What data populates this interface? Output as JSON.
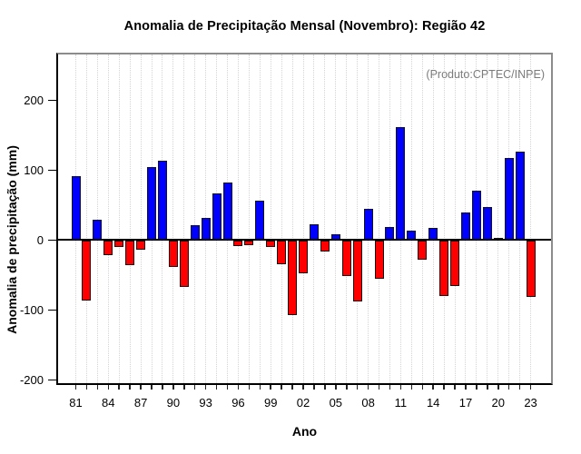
{
  "title": "Anomalia de Precipitação Mensal (Novembro): Região 42",
  "annotation": "(Produto:CPTEC/INPE)",
  "xlabel": "Ano",
  "ylabel": "Anomalia de precipitação (mm)",
  "colors": {
    "positive_bar": "#0000ff",
    "negative_bar": "#ff0000",
    "bar_border": "#141414",
    "annotation_text": "#7b7b7b",
    "box_border": "#8c8c8c",
    "axis": "#000000",
    "gridline": "#d4d4d4"
  },
  "y_axis": {
    "tick_labels": [
      "200",
      "100",
      "0",
      "-100",
      "-200"
    ],
    "tick_values": [
      200,
      100,
      0,
      -100,
      -200
    ]
  },
  "x_axis": {
    "tick_labels": [
      "81",
      "84",
      "87",
      "90",
      "93",
      "96",
      "99",
      "02",
      "05",
      "08",
      "11",
      "14",
      "17",
      "20",
      "23"
    ],
    "label_every_years": 3,
    "minor_tick_every_years": 1
  },
  "chart_data": {
    "type": "bar",
    "title": "Anomalia de Precipitação Mensal (Novembro): Região 42",
    "xlabel": "Ano",
    "ylabel": "Anomalia de precipitação (mm)",
    "x": [
      1981,
      1982,
      1983,
      1984,
      1985,
      1986,
      1987,
      1988,
      1989,
      1990,
      1991,
      1992,
      1993,
      1994,
      1995,
      1996,
      1997,
      1998,
      1999,
      2000,
      2001,
      2002,
      2003,
      2004,
      2005,
      2006,
      2007,
      2008,
      2009,
      2010,
      2011,
      2012,
      2013,
      2014,
      2015,
      2016,
      2017,
      2018,
      2019,
      2020,
      2021,
      2022,
      2023
    ],
    "values": [
      91,
      -87,
      29,
      -22,
      -10,
      -36,
      -13,
      105,
      113,
      -38,
      -67,
      22,
      32,
      67,
      82,
      -8,
      -7,
      57,
      -10,
      -35,
      -107,
      -48,
      23,
      -16,
      9,
      -51,
      -88,
      45,
      -55,
      19,
      162,
      13,
      -28,
      17,
      -80,
      -65,
      39,
      71,
      48,
      3,
      118,
      127,
      -81
    ],
    "ylim": [
      -207,
      268
    ],
    "grid": "vertical dotted line at every year",
    "legend": "none",
    "color_rule": "positive values blue, negative values red"
  }
}
